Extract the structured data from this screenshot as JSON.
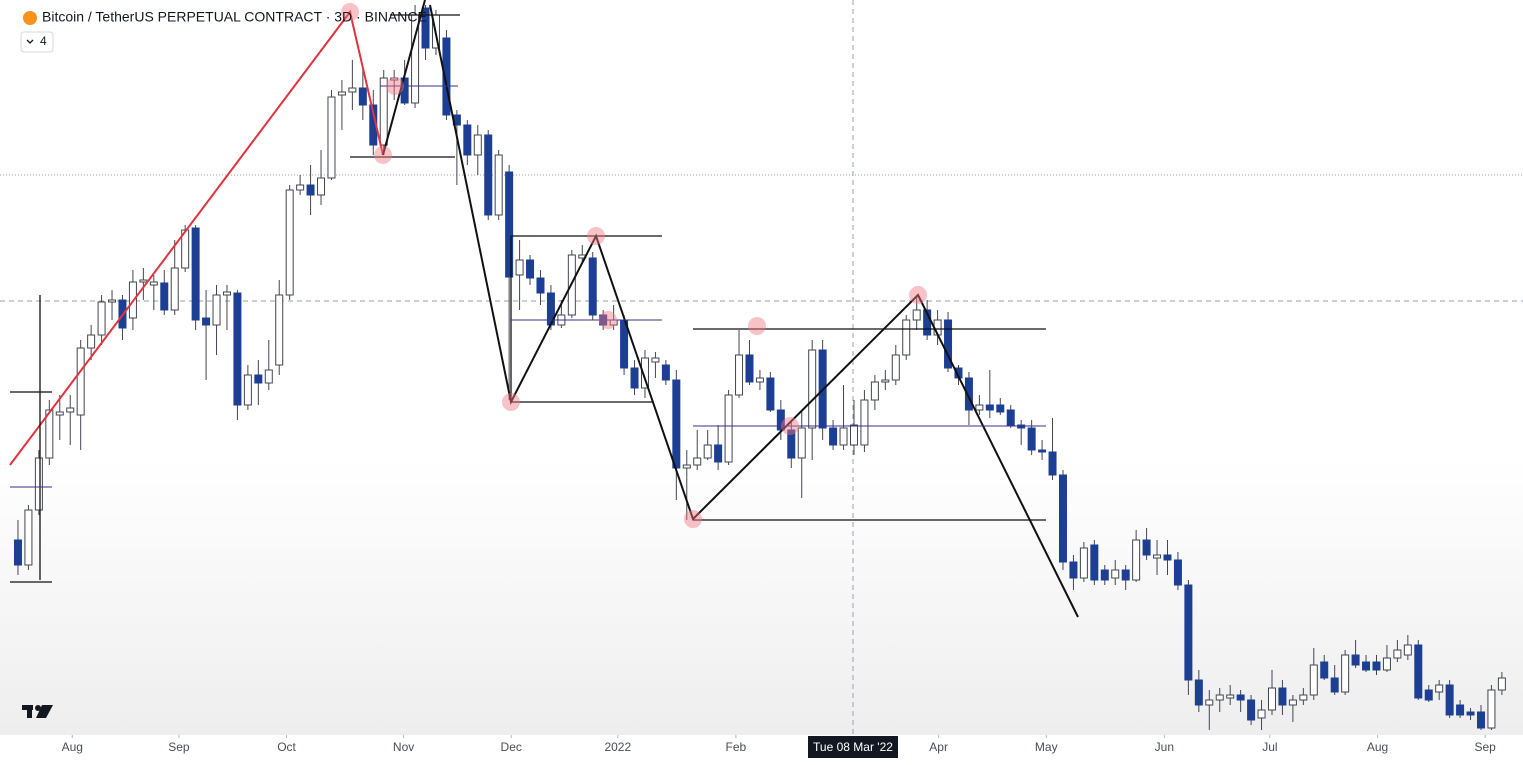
{
  "chart_data": {
    "type": "candlestick",
    "title": "Bitcoin / TetherUS PERPETUAL CONTRACT · 3D · BINANCE",
    "indicator_count": 4,
    "crosshair_label": "Tue 08 Mar '22",
    "up_color": "#ffffff",
    "down_color": "#1c3f94",
    "wick_color": "#434651",
    "xlim": [
      -1.72,
      144.02
    ],
    "ylim": [
      18550,
      70000
    ],
    "xticks": [
      {
        "value": 5.2,
        "label": "Aug"
      },
      {
        "value": 15.4,
        "label": "Sep"
      },
      {
        "value": 25.7,
        "label": "Oct"
      },
      {
        "value": 36.9,
        "label": "Nov"
      },
      {
        "value": 47.2,
        "label": "Dec"
      },
      {
        "value": 57.4,
        "label": "2022"
      },
      {
        "value": 68.7,
        "label": "Feb"
      },
      {
        "value": 88.1,
        "label": "Apr"
      },
      {
        "value": 98.4,
        "label": "May"
      },
      {
        "value": 109.7,
        "label": "Jun"
      },
      {
        "value": 119.8,
        "label": "Jul"
      },
      {
        "value": 130.1,
        "label": "Aug"
      },
      {
        "value": 140.4,
        "label": "Sep"
      }
    ],
    "open": [
      32200,
      30450,
      34300,
      37940,
      40950,
      41160,
      40950,
      45640,
      46550,
      48860,
      49000,
      47740,
      50260,
      50050,
      50190,
      48300,
      51240,
      54040,
      47740,
      47250,
      49350,
      49490,
      41650,
      43750,
      43190,
      44450,
      49350,
      56700,
      57050,
      56350,
      57540,
      63350,
      63560,
      63840,
      62650,
      59850,
      64400,
      64540,
      62790,
      69440,
      66640,
      67340,
      61950,
      61250,
      59150,
      60550,
      54950,
      57960,
      50750,
      51800,
      50540,
      49490,
      47250,
      47950,
      51940,
      51940,
      47950,
      47250,
      47600,
      44240,
      42840,
      44660,
      44450,
      43400,
      37240,
      37450,
      37940,
      38850,
      37660,
      42350,
      45150,
      43260,
      43540,
      41300,
      39900,
      37940,
      40040,
      45500,
      40040,
      38850,
      38850,
      38850,
      42000,
      43260,
      43400,
      45150,
      47600,
      48300,
      46550,
      47600,
      44240,
      43540,
      41300,
      41650,
      41650,
      41300,
      40250,
      40040,
      38500,
      38360,
      36750,
      30660,
      29540,
      31850,
      30100,
      29540,
      30100,
      29400,
      32200,
      30940,
      31150,
      30800,
      29050,
      22400,
      20650,
      21000,
      21140,
      21350,
      21000,
      19740,
      20300,
      21840,
      20650,
      21000,
      21350,
      23660,
      22540,
      21560,
      24150,
      23660,
      23660,
      23100,
      23940,
      24150,
      24850,
      21700,
      21560,
      22050,
      20650,
      20160,
      20160,
      19040,
      21700
    ],
    "high": [
      33600,
      34650,
      38500,
      42000,
      42350,
      42350,
      46200,
      47250,
      49350,
      49700,
      49350,
      51100,
      51240,
      50750,
      51100,
      53200,
      54250,
      54250,
      49700,
      50050,
      50050,
      49700,
      44450,
      44800,
      46200,
      50400,
      57050,
      57750,
      58450,
      59500,
      63700,
      64400,
      65800,
      65100,
      63700,
      65100,
      65100,
      65800,
      69650,
      69650,
      69300,
      67900,
      62300,
      61600,
      61250,
      60900,
      59500,
      58450,
      53200,
      52150,
      51100,
      50050,
      49000,
      52500,
      52850,
      52360,
      48300,
      48650,
      47950,
      44800,
      45500,
      45360,
      44800,
      44100,
      38500,
      39900,
      39900,
      40250,
      42700,
      46900,
      46200,
      44100,
      43960,
      42000,
      40600,
      41300,
      46200,
      46200,
      40600,
      43050,
      42000,
      42700,
      43750,
      44100,
      45850,
      47950,
      49350,
      49000,
      48300,
      48160,
      44450,
      43960,
      42350,
      44100,
      42140,
      41650,
      40600,
      40600,
      39200,
      40740,
      37100,
      31150,
      32060,
      32200,
      30450,
      30800,
      30450,
      32900,
      33040,
      32200,
      32200,
      31360,
      29400,
      23100,
      21700,
      21840,
      22050,
      21700,
      21350,
      21000,
      23100,
      22400,
      21350,
      21840,
      24640,
      24150,
      23450,
      24500,
      25200,
      24150,
      24150,
      24850,
      25200,
      25550,
      25200,
      22050,
      22400,
      22400,
      21000,
      20440,
      20650,
      22050,
      22960
    ],
    "low": [
      29750,
      30100,
      33950,
      37450,
      39200,
      38850,
      38500,
      44800,
      45850,
      47600,
      46200,
      46900,
      49000,
      48300,
      47950,
      47950,
      50960,
      46900,
      43400,
      45150,
      46900,
      40600,
      41300,
      41650,
      42700,
      43750,
      49000,
      56350,
      54950,
      55650,
      57400,
      60900,
      62300,
      61600,
      59150,
      59150,
      63000,
      62650,
      62440,
      65800,
      66150,
      61600,
      57050,
      58450,
      57750,
      54600,
      54600,
      42000,
      48300,
      50050,
      48650,
      46900,
      47040,
      47740,
      51660,
      47600,
      46900,
      46900,
      43750,
      42350,
      42140,
      43540,
      43050,
      35000,
      33600,
      37100,
      37800,
      37100,
      37450,
      42140,
      43050,
      42700,
      41160,
      39200,
      37240,
      35140,
      37800,
      39200,
      38500,
      38500,
      38150,
      38360,
      41300,
      42700,
      43050,
      44800,
      46900,
      46200,
      45850,
      43960,
      43050,
      40250,
      40950,
      40740,
      40950,
      40040,
      38850,
      38150,
      37800,
      36400,
      30100,
      28700,
      29260,
      29050,
      29050,
      29050,
      28700,
      29260,
      30800,
      29750,
      29750,
      28700,
      21350,
      20160,
      18900,
      20160,
      20650,
      20160,
      19250,
      18900,
      19950,
      19950,
      19460,
      20650,
      21000,
      22400,
      21350,
      21350,
      23240,
      22960,
      22750,
      22960,
      23660,
      23800,
      21000,
      20860,
      21000,
      19740,
      19740,
      19600,
      18900,
      18900,
      21350
    ],
    "close": [
      30450,
      34300,
      37940,
      41300,
      41160,
      41440,
      45640,
      46550,
      48860,
      49000,
      47040,
      50260,
      50400,
      50260,
      48300,
      51240,
      53900,
      47600,
      47250,
      49350,
      49560,
      41650,
      43750,
      43190,
      44100,
      49350,
      56700,
      57050,
      56350,
      57540,
      63210,
      63560,
      63840,
      62650,
      59850,
      64540,
      64540,
      62790,
      68950,
      66640,
      68950,
      61950,
      61250,
      59150,
      60550,
      54950,
      59150,
      50610,
      51800,
      50540,
      49490,
      47250,
      47950,
      52150,
      52150,
      47950,
      47250,
      47600,
      44240,
      42840,
      44940,
      44940,
      43400,
      37240,
      37450,
      37940,
      38850,
      37660,
      42350,
      45150,
      43260,
      43540,
      41300,
      39900,
      37940,
      40040,
      45500,
      40040,
      38850,
      40040,
      40250,
      42000,
      43260,
      43400,
      45150,
      47600,
      48300,
      46550,
      47600,
      44240,
      43540,
      41300,
      41650,
      41300,
      41160,
      40250,
      40040,
      38500,
      38360,
      36750,
      30660,
      29540,
      31640,
      29400,
      29400,
      30100,
      29400,
      32200,
      31150,
      31150,
      30800,
      29050,
      22400,
      20650,
      21000,
      21350,
      21350,
      21000,
      19600,
      20300,
      21840,
      20650,
      21000,
      21350,
      23450,
      22540,
      21560,
      24150,
      23450,
      23100,
      23100,
      23940,
      24500,
      24850,
      21140,
      21000,
      22050,
      19950,
      19950,
      19950,
      19040,
      21700,
      22540
    ]
  }
}
